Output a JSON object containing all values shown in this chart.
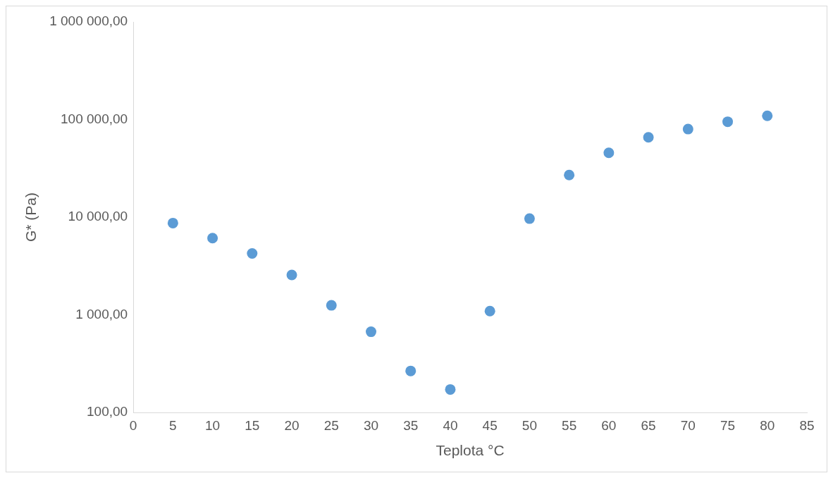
{
  "chart_data": {
    "type": "scatter",
    "xlabel": "Teplota °C",
    "ylabel": "G* (Pa)",
    "x": [
      5,
      10,
      15,
      20,
      25,
      30,
      35,
      40,
      45,
      50,
      55,
      60,
      65,
      70,
      75,
      80
    ],
    "values": [
      8700,
      6100,
      4250,
      2560,
      1250,
      670,
      266,
      172,
      1090,
      9660,
      27000,
      45600,
      65700,
      79800,
      94900,
      109000
    ],
    "color": "#5b9bd5",
    "marker": "circle",
    "log": "y",
    "grid": false,
    "xlim": [
      0,
      85
    ],
    "xticks": [
      0,
      5,
      10,
      15,
      20,
      25,
      30,
      35,
      40,
      45,
      50,
      55,
      60,
      65,
      70,
      75,
      80,
      85
    ],
    "ylim": [
      100,
      1000000
    ],
    "yticks": [
      {
        "value": 100,
        "label": "100,00"
      },
      {
        "value": 1000,
        "label": "1 000,00"
      },
      {
        "value": 10000,
        "label": "10 000,00"
      },
      {
        "value": 100000,
        "label": "100 000,00"
      },
      {
        "value": 1000000,
        "label": "1 000 000,00"
      }
    ]
  }
}
